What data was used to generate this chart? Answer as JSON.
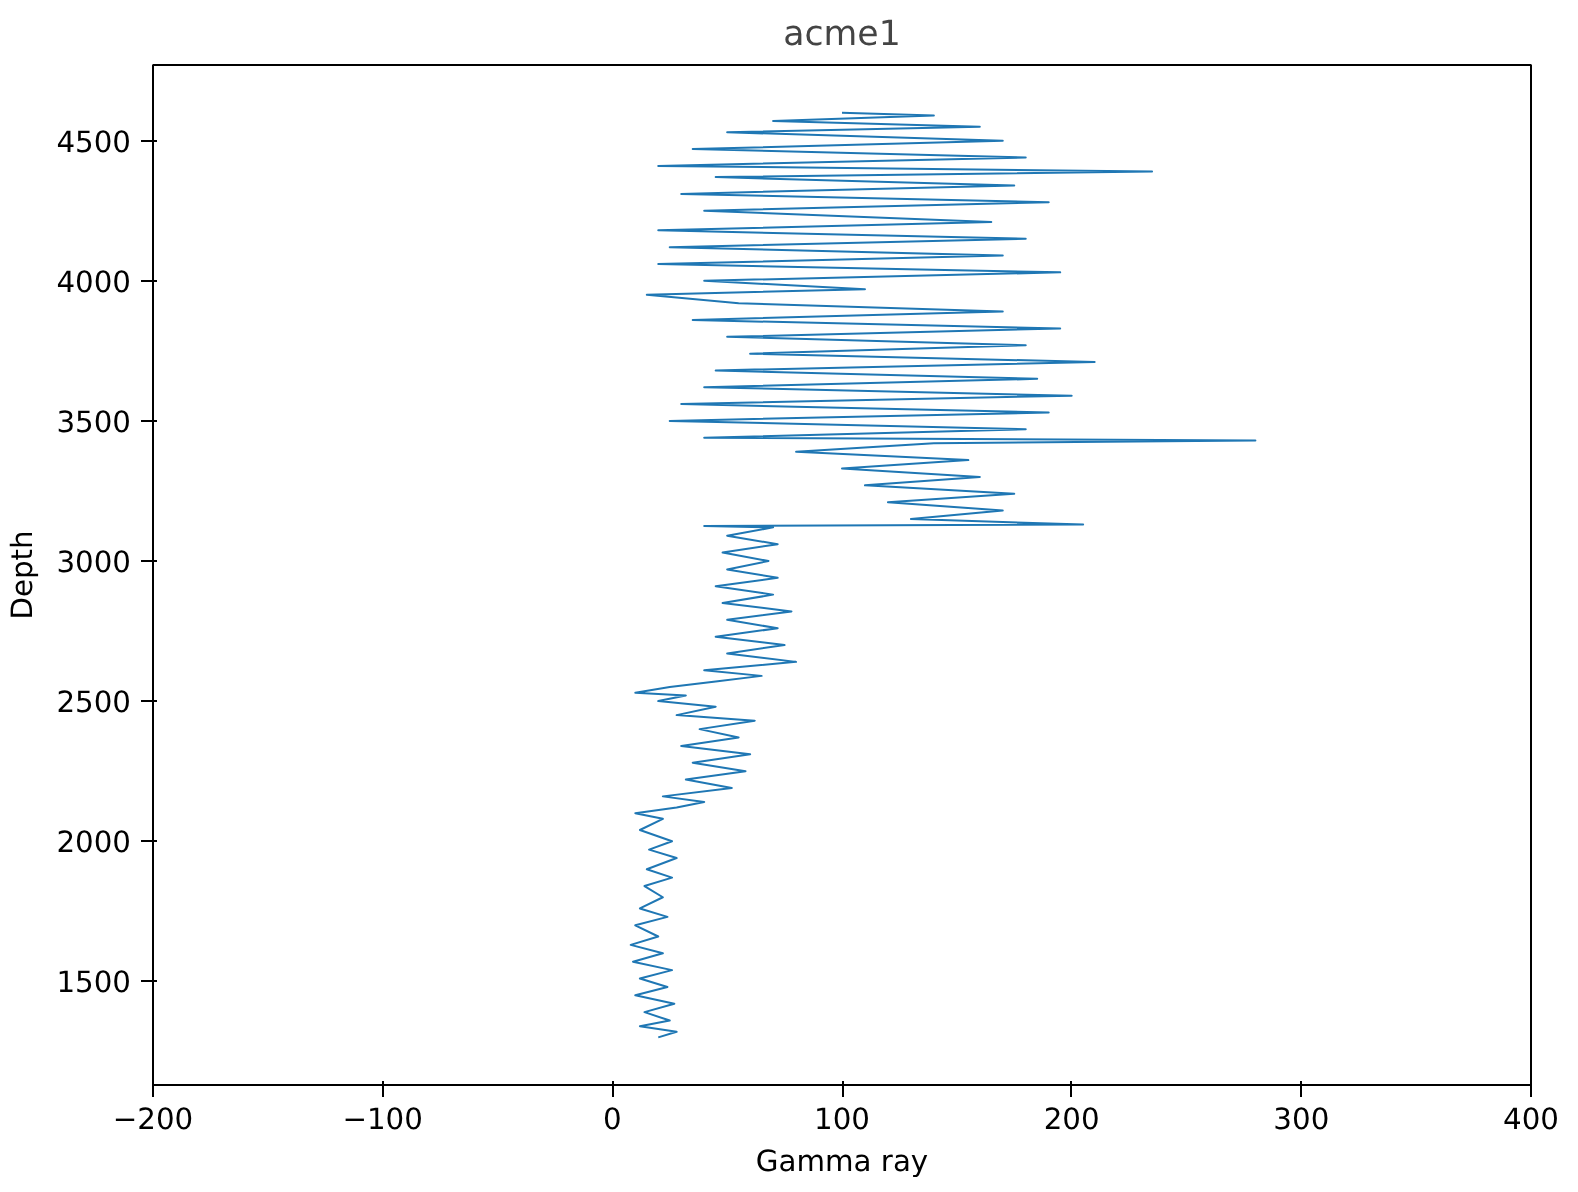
{
  "chart_data": {
    "type": "line",
    "title": "acme1",
    "xlabel": "Gamma ray",
    "ylabel": "Depth",
    "xlim": [
      -200,
      400
    ],
    "xticks": [
      {
        "value": -200,
        "label": "−200"
      },
      {
        "value": -100,
        "label": "−100"
      },
      0,
      100,
      200,
      300,
      400
    ],
    "ylim": [
      1130,
      4770
    ],
    "yticks": [
      1500,
      2000,
      2500,
      3000,
      3500,
      4000,
      4500
    ],
    "grid": false,
    "marker": "none",
    "line_style": "solid",
    "series": [
      {
        "color": "#1f77b4",
        "x": [
          20,
          28,
          12,
          25,
          14,
          27,
          10,
          24,
          12,
          26,
          9,
          22,
          8,
          20,
          10,
          24,
          12,
          22,
          14,
          26,
          15,
          28,
          16,
          26,
          12,
          22,
          10,
          28,
          40,
          22,
          52,
          32,
          58,
          35,
          60,
          30,
          55,
          38,
          62,
          28,
          45,
          20,
          32,
          10,
          25,
          45,
          65,
          40,
          80,
          50,
          75,
          45,
          72,
          50,
          78,
          48,
          70,
          45,
          72,
          50,
          68,
          48,
          72,
          50,
          70,
          40,
          205,
          130,
          170,
          120,
          175,
          110,
          160,
          100,
          155,
          80,
          140,
          280,
          40,
          180,
          25,
          190,
          30,
          200,
          40,
          185,
          45,
          210,
          60,
          180,
          50,
          195,
          35,
          170,
          55,
          15,
          110,
          40,
          195,
          20,
          170,
          25,
          180,
          20,
          165,
          40,
          190,
          30,
          175,
          45,
          235,
          20,
          180,
          35,
          170,
          50,
          160,
          70,
          140,
          100
        ],
        "values": [
          1300,
          1320,
          1340,
          1360,
          1390,
          1420,
          1450,
          1480,
          1510,
          1540,
          1570,
          1600,
          1630,
          1660,
          1700,
          1730,
          1760,
          1800,
          1840,
          1870,
          1900,
          1940,
          1970,
          2000,
          2040,
          2080,
          2100,
          2120,
          2140,
          2160,
          2190,
          2220,
          2250,
          2280,
          2310,
          2340,
          2370,
          2400,
          2430,
          2450,
          2480,
          2500,
          2520,
          2530,
          2550,
          2570,
          2590,
          2610,
          2640,
          2670,
          2700,
          2730,
          2760,
          2790,
          2820,
          2850,
          2880,
          2910,
          2940,
          2970,
          3000,
          3030,
          3060,
          3090,
          3120,
          3125,
          3130,
          3150,
          3180,
          3210,
          3240,
          3270,
          3300,
          3330,
          3360,
          3390,
          3420,
          3430,
          3440,
          3470,
          3500,
          3530,
          3560,
          3590,
          3620,
          3650,
          3680,
          3710,
          3740,
          3770,
          3800,
          3830,
          3860,
          3890,
          3920,
          3950,
          3970,
          4000,
          4030,
          4060,
          4090,
          4120,
          4150,
          4180,
          4210,
          4250,
          4280,
          4310,
          4340,
          4370,
          4390,
          4410,
          4440,
          4470,
          4500,
          4530,
          4550,
          4570,
          4590,
          4600
        ]
      }
    ]
  }
}
